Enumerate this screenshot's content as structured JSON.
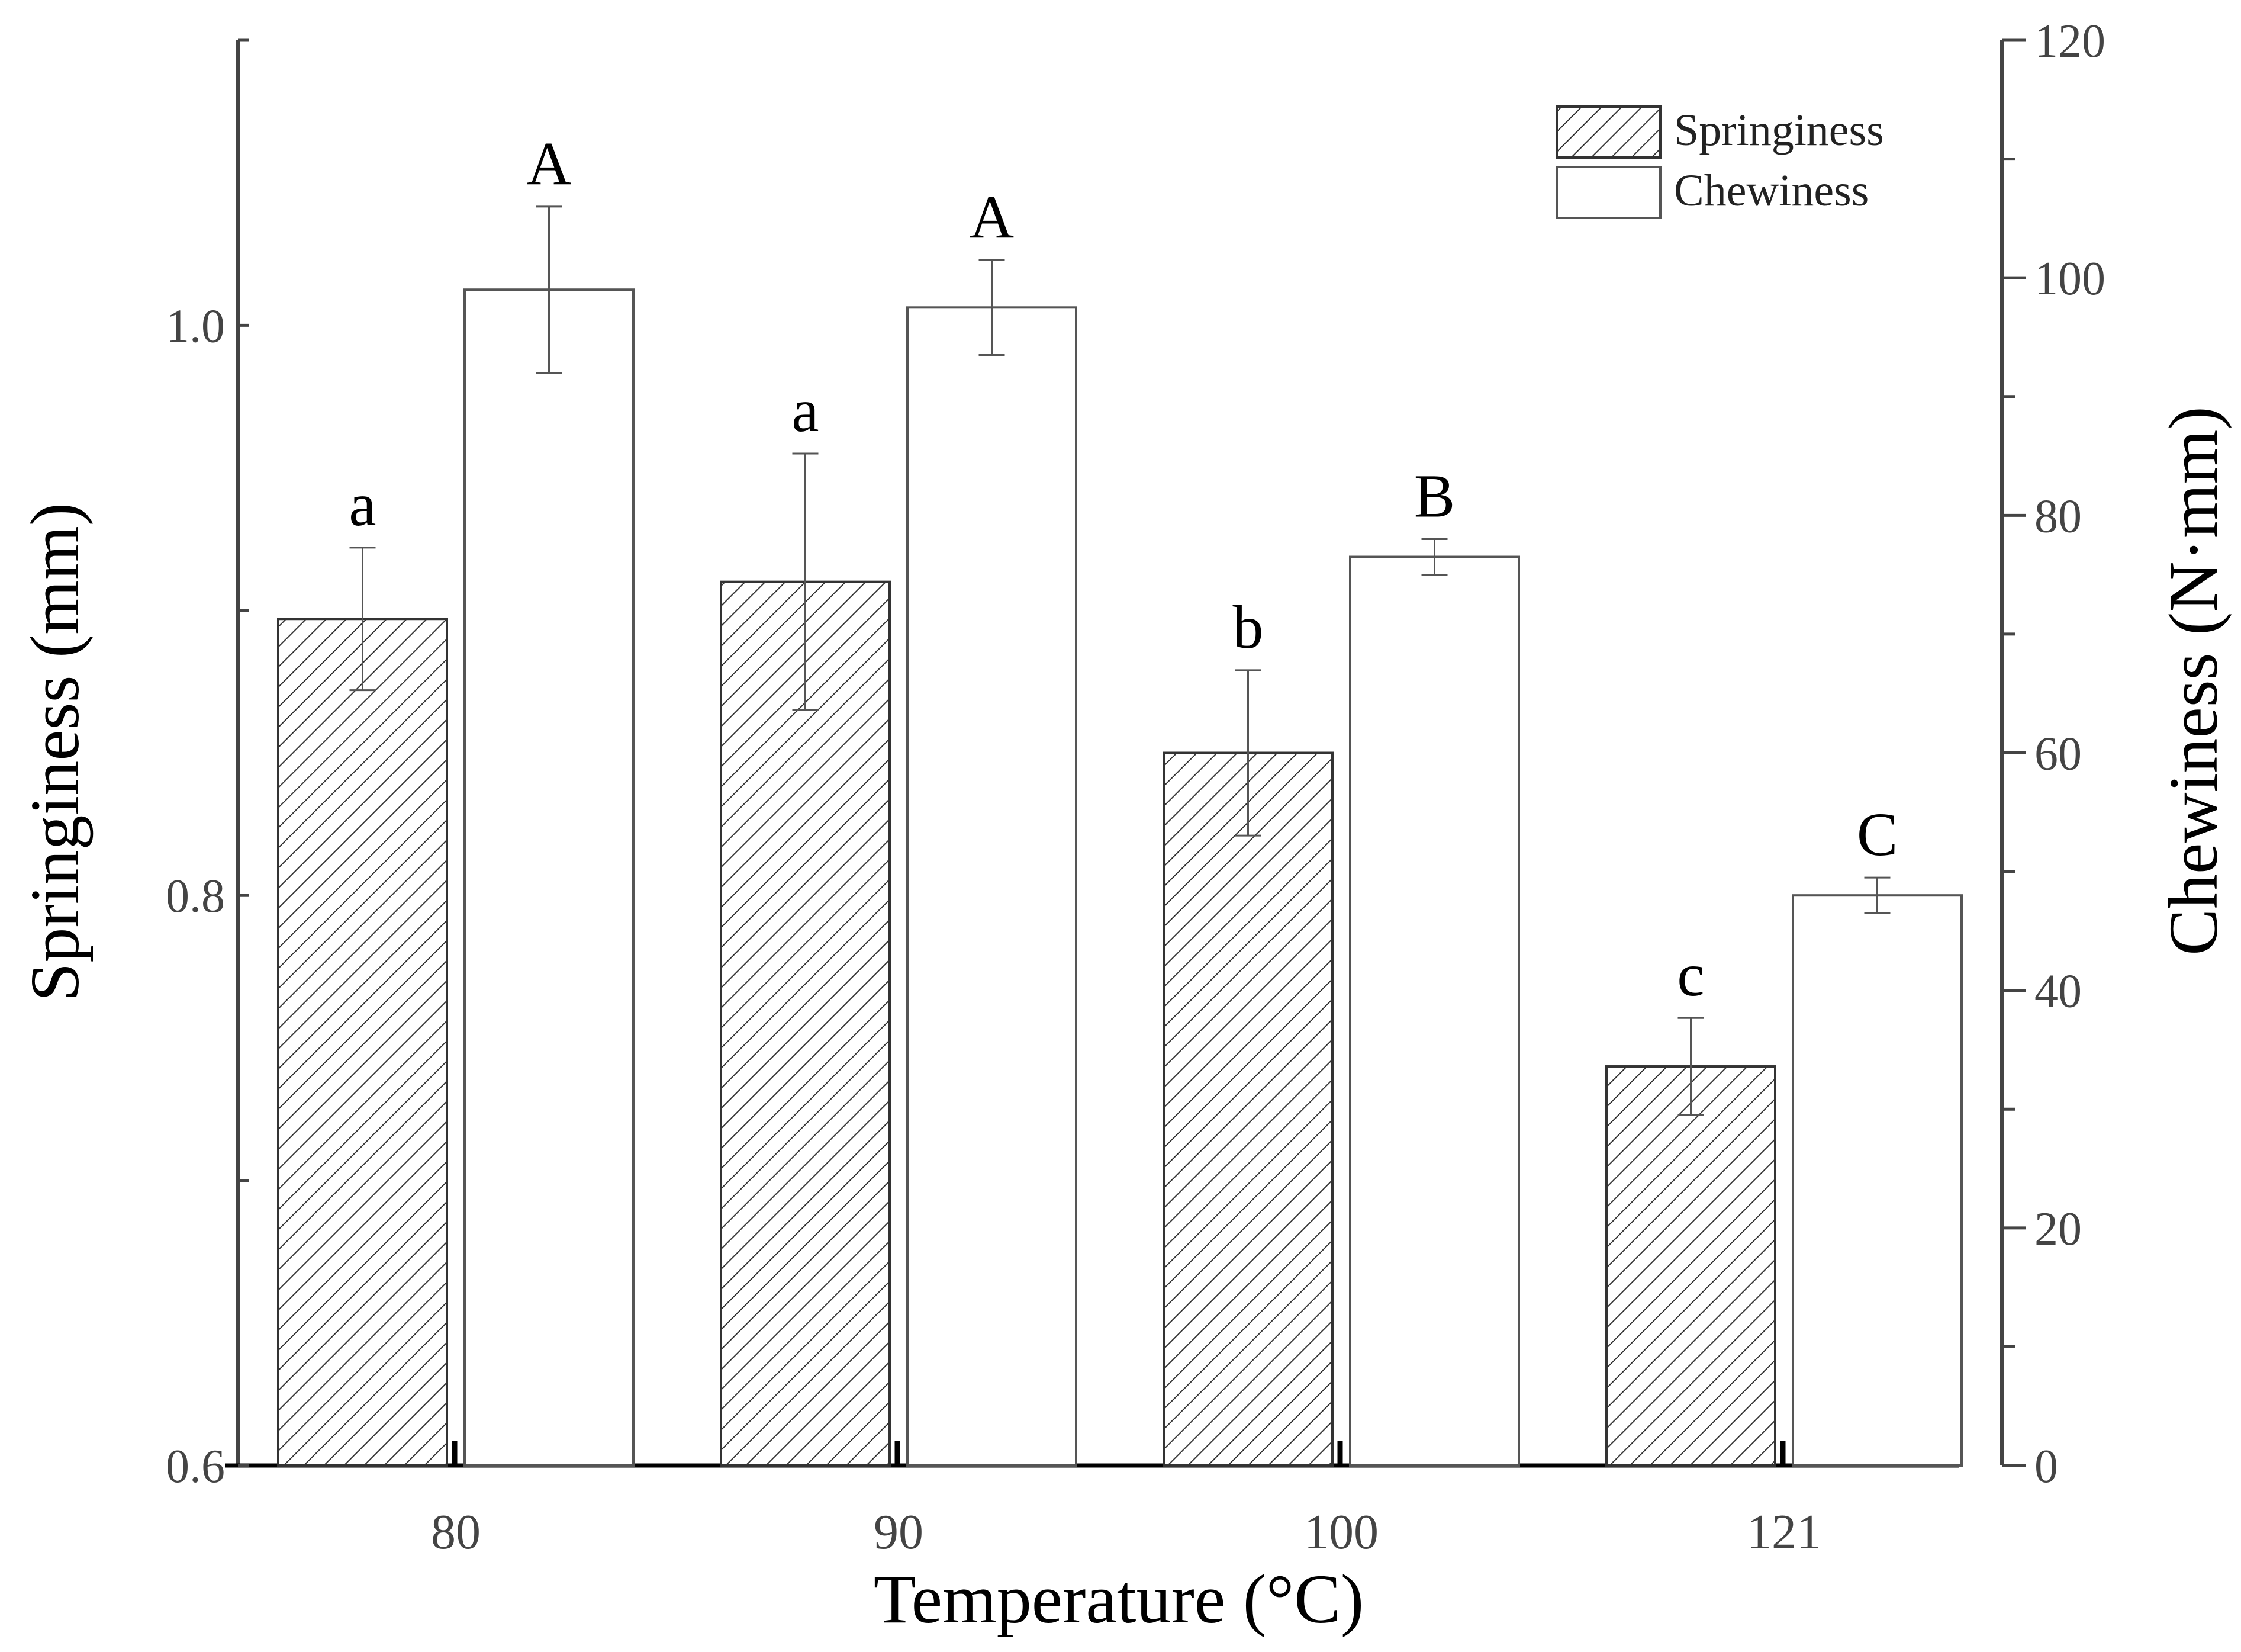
{
  "chart_data": {
    "type": "bar",
    "categories": [
      "80",
      "90",
      "100",
      "121"
    ],
    "xlabel": "Temperature (°C)",
    "ylabel_left": "Springiness (mm)",
    "ylabel_right": "Chewiness (N·mm)",
    "ylim_left": [
      0.6,
      1.1
    ],
    "ylim_right": [
      0,
      120
    ],
    "yticks_left": [
      "0.6",
      "0.8",
      "1.0"
    ],
    "yticks_right": [
      "0",
      "20",
      "40",
      "60",
      "80",
      "100",
      "120"
    ],
    "series": [
      {
        "name": "Springiness",
        "axis": "left",
        "pattern": "hatched",
        "values": [
          0.897,
          0.91,
          0.85,
          0.74
        ],
        "errors": [
          0.025,
          0.045,
          0.029,
          0.017
        ],
        "letters": [
          "a",
          "a",
          "b",
          "c"
        ]
      },
      {
        "name": "Chewiness",
        "axis": "right",
        "pattern": "open",
        "values": [
          99.0,
          97.5,
          76.5,
          48.0
        ],
        "errors": [
          7.0,
          4.0,
          1.5,
          1.5
        ],
        "letters": [
          "A",
          "A",
          "B",
          "C"
        ]
      }
    ],
    "legend": {
      "position": "top-right",
      "entries": [
        "Springiness",
        "Chewiness"
      ]
    }
  }
}
